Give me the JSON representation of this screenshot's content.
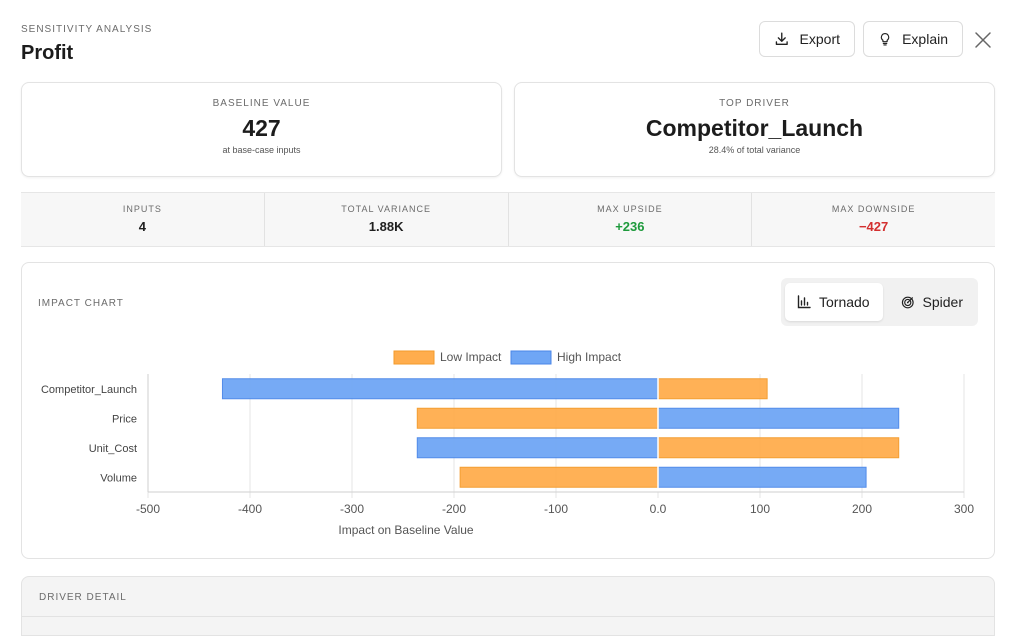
{
  "header": {
    "kicker": "SENSITIVITY ANALYSIS",
    "title": "Profit"
  },
  "actions": {
    "export_label": "Export",
    "explain_label": "Explain"
  },
  "baseline": {
    "label": "BASELINE VALUE",
    "value": "427",
    "sub": "at base-case inputs"
  },
  "top_driver": {
    "label": "TOP DRIVER",
    "value": "Competitor_Launch",
    "sub": "28.4% of total variance"
  },
  "stats": [
    {
      "label": "INPUTS",
      "value": "4",
      "tone": "neutral"
    },
    {
      "label": "TOTAL VARIANCE",
      "value": "1.88K",
      "tone": "neutral"
    },
    {
      "label": "MAX UPSIDE",
      "value": "+236",
      "tone": "positive"
    },
    {
      "label": "MAX DOWNSIDE",
      "value": "−427",
      "tone": "negative"
    }
  ],
  "chart_section": {
    "label": "IMPACT CHART",
    "toggle": [
      "Tornado",
      "Spider"
    ],
    "active": "Tornado"
  },
  "detail_section": {
    "label": "DRIVER DETAIL"
  },
  "colors": {
    "low": "#ffad4d",
    "low_border": "#f39a2a",
    "high": "#6fa6f5",
    "high_border": "#4a86e8",
    "positive": "#1e9a3c",
    "negative": "#d32f2f"
  },
  "chart_data": {
    "type": "bar",
    "orientation": "horizontal",
    "categories": [
      "Competitor_Launch",
      "Price",
      "Unit_Cost",
      "Volume"
    ],
    "series": [
      {
        "name": "Low Impact",
        "values": [
          [
            0,
            107
          ],
          [
            -236,
            0
          ],
          [
            0,
            236
          ],
          [
            -194,
            0
          ]
        ]
      },
      {
        "name": "High Impact",
        "values": [
          [
            -427,
            0
          ],
          [
            0,
            236
          ],
          [
            -236,
            0
          ],
          [
            0,
            204
          ]
        ]
      }
    ],
    "xlabel": "Impact on Baseline Value",
    "xlim": [
      -500,
      300
    ],
    "xticks": [
      "-500",
      "-400",
      "-300",
      "-200",
      "-100",
      "0.0",
      "100",
      "200",
      "300"
    ],
    "grid": true,
    "legend": "top"
  }
}
